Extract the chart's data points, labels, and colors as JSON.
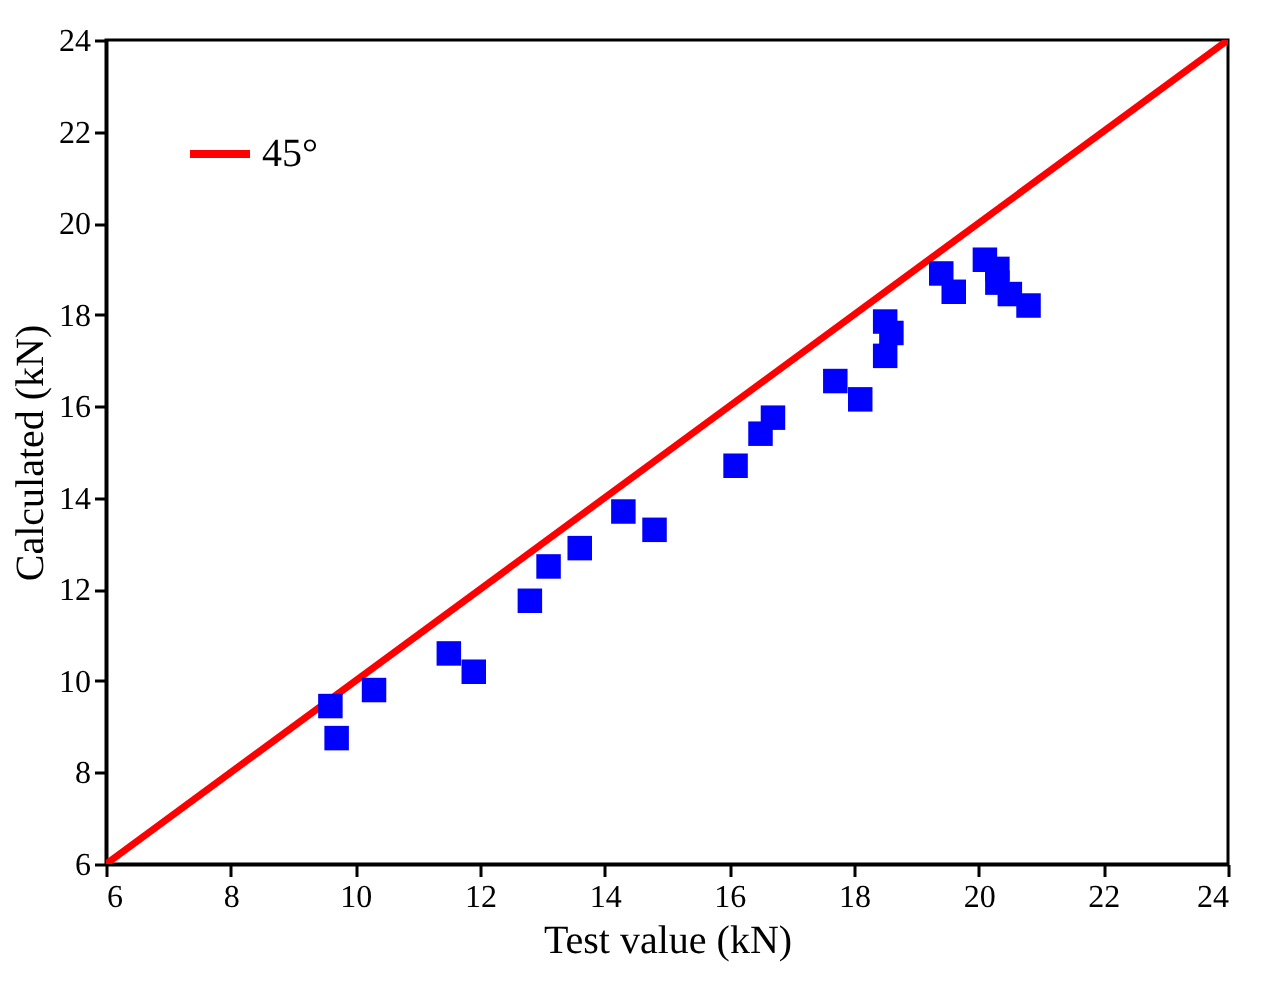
{
  "chart_data": {
    "type": "scatter",
    "xlabel": "Test value  (kN)",
    "ylabel": "Calculated  (kN)",
    "xlim": [
      6,
      24
    ],
    "ylim": [
      6,
      24
    ],
    "xticks": [
      6,
      8,
      10,
      12,
      14,
      16,
      18,
      20,
      22,
      24
    ],
    "yticks": [
      6,
      8,
      10,
      12,
      14,
      16,
      18,
      20,
      22,
      24
    ],
    "grid": false,
    "legend": "top left",
    "series": [
      {
        "name": "45°",
        "type": "line",
        "color": "#ff0000",
        "line_style": "solid",
        "x": [
          6,
          24
        ],
        "values": [
          6,
          24
        ]
      },
      {
        "marker": "square",
        "color": "#0000ff",
        "x": [
          9.6,
          9.7,
          10.3,
          11.5,
          11.9,
          12.8,
          13.1,
          13.6,
          14.3,
          14.8,
          16.1,
          16.5,
          16.7,
          17.7,
          18.1,
          18.5,
          18.5,
          18.6,
          19.4,
          19.6,
          20.1,
          20.3,
          20.3,
          20.5,
          20.8
        ],
        "values": [
          9.45,
          8.75,
          9.8,
          10.6,
          10.2,
          11.75,
          12.5,
          12.9,
          13.7,
          13.3,
          14.7,
          15.4,
          15.75,
          16.55,
          16.15,
          17.85,
          17.1,
          17.6,
          18.9,
          18.5,
          19.2,
          19.0,
          18.7,
          18.45,
          18.2
        ]
      }
    ]
  }
}
